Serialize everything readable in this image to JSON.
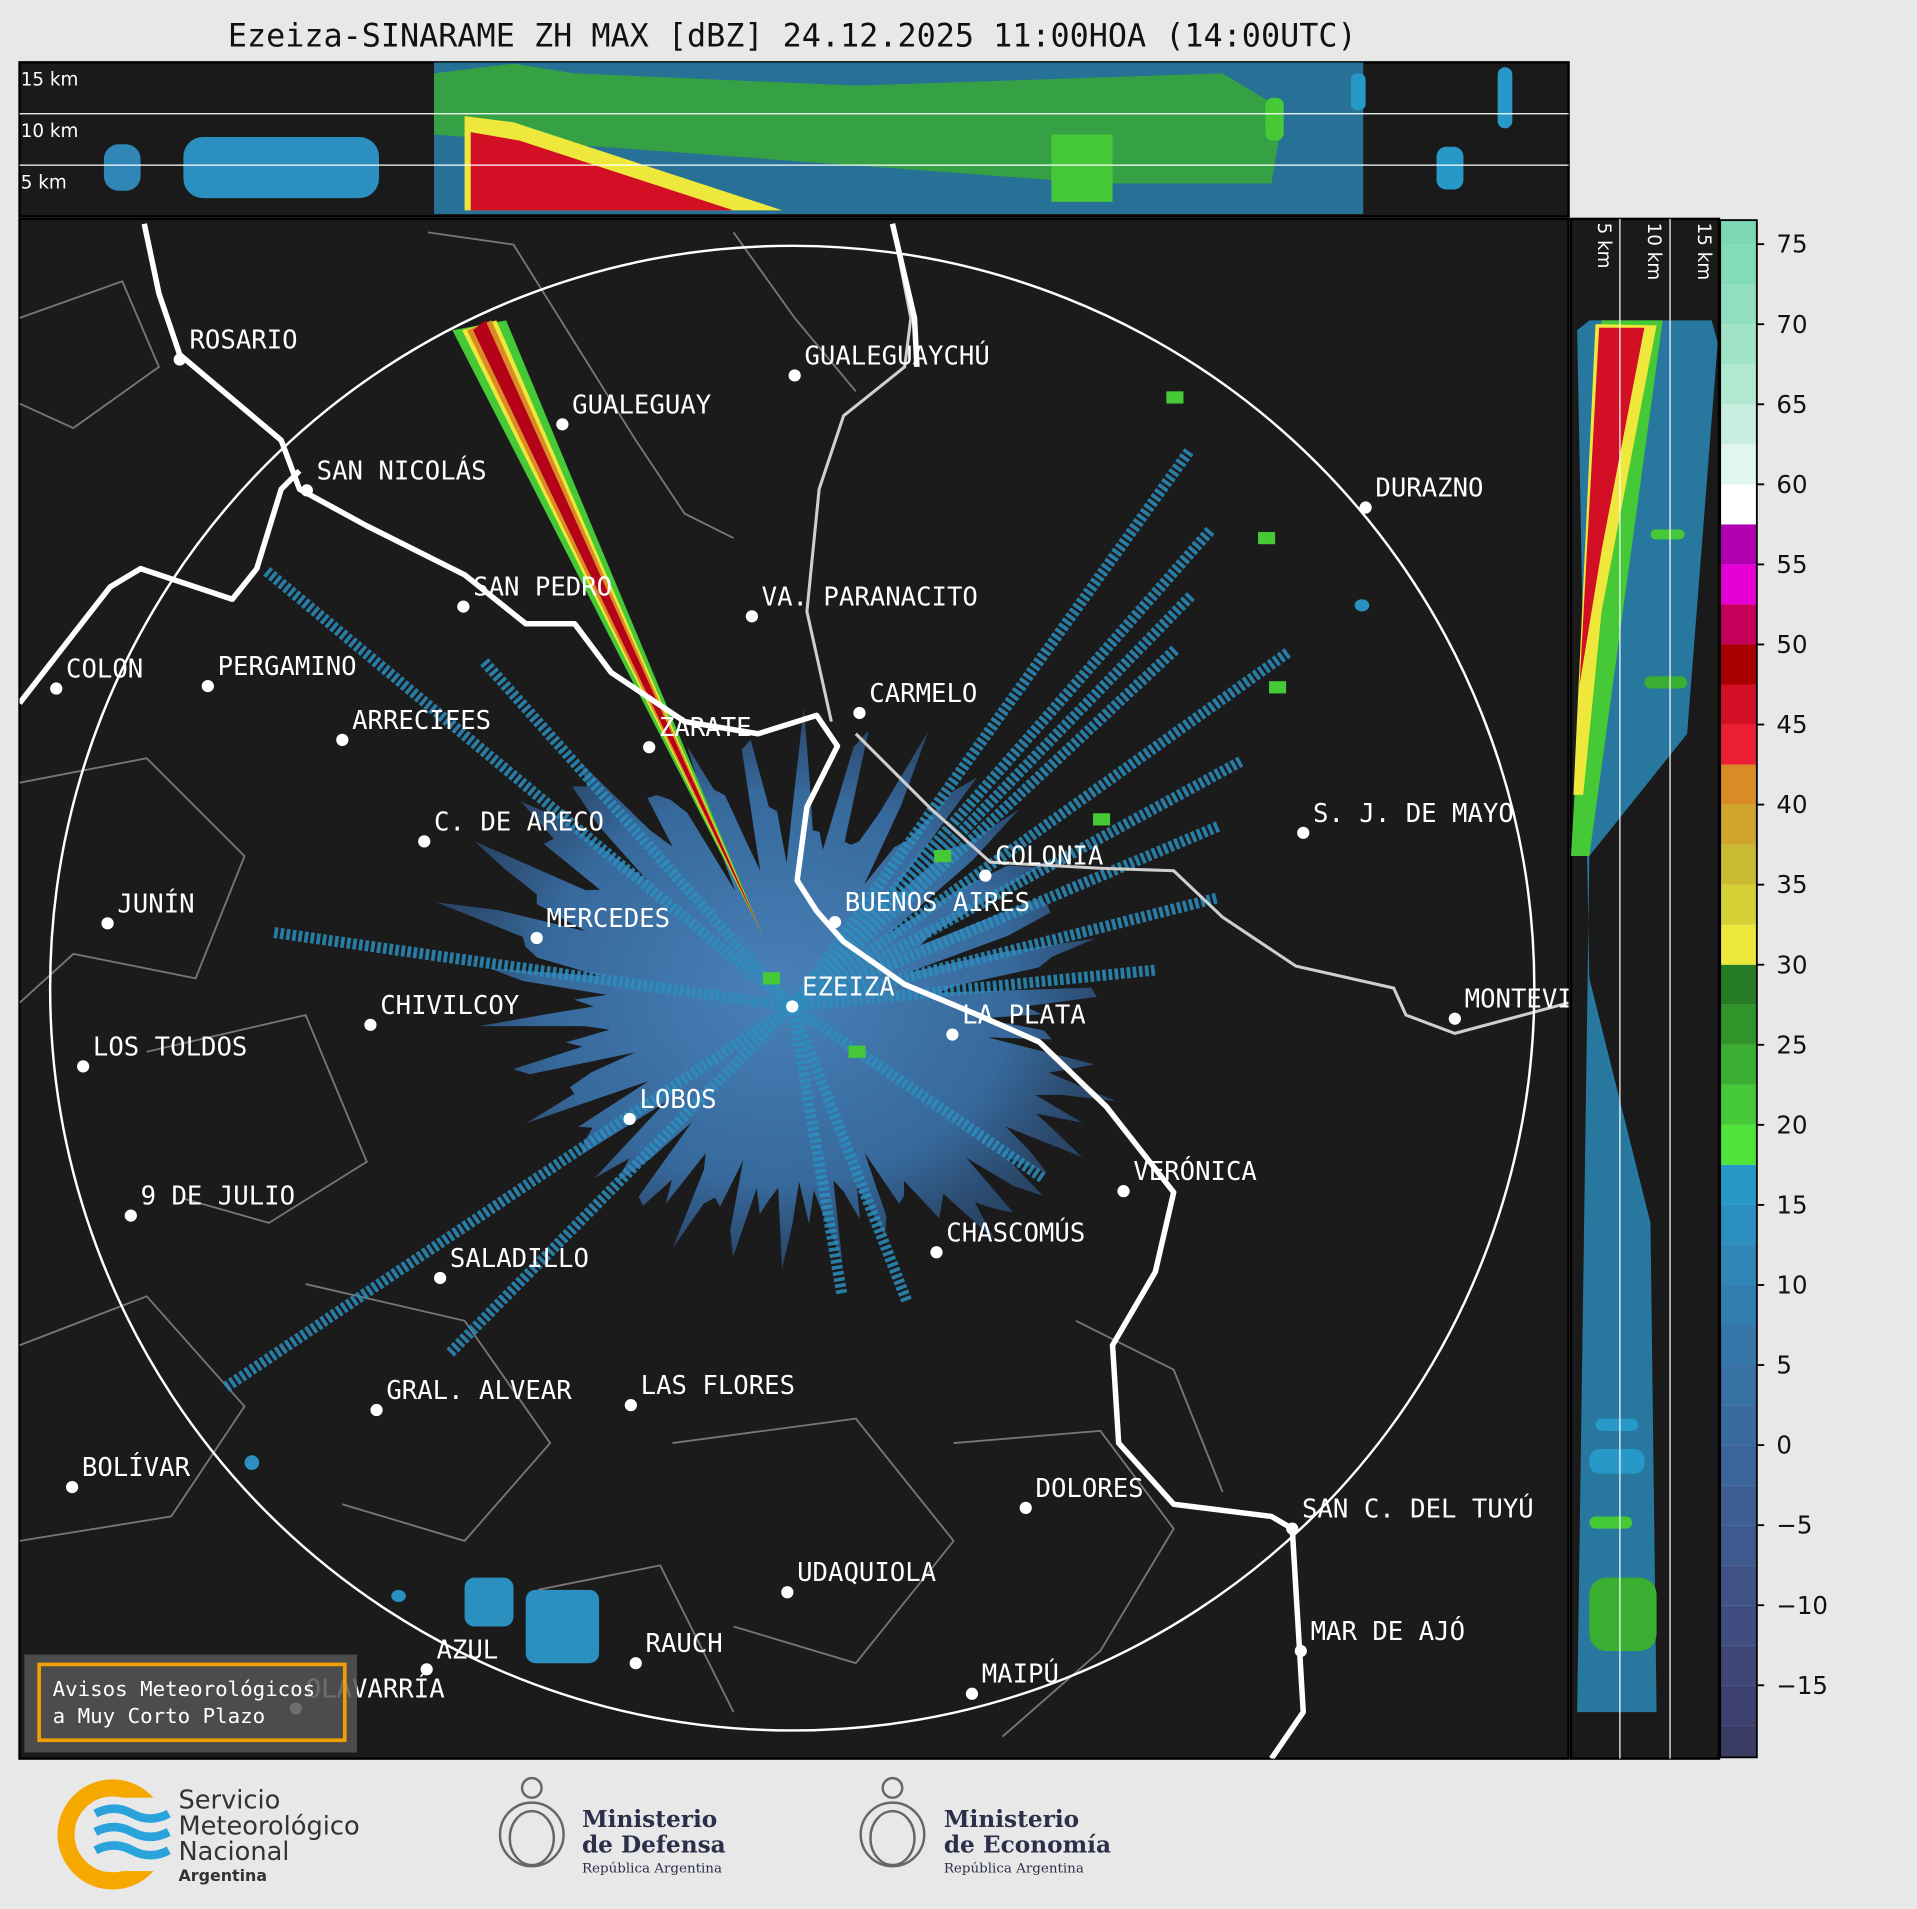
{
  "title": "Ezeiza-SINARAME ZH MAX [dBZ] 24.12.2025 11:00HOA (14:00UTC)",
  "top_section": {
    "labels": [
      "15 km",
      "10 km",
      "5 km"
    ]
  },
  "side_section": {
    "labels": [
      "5 km",
      "10 km",
      "15 km"
    ]
  },
  "cities": [
    "ROSARIO",
    "GUALEGUAYCHÚ",
    "GUALEGUAY",
    "SAN NICOLÁS",
    "DURAZNO",
    "SAN PEDRO",
    "VA. PARANACITO",
    "COLON",
    "PERGAMINO",
    "CARMELO",
    "ARRECIFES",
    "ZARATE",
    "S. J. DE MAYO",
    "C. DE ARECO",
    "COLONIA",
    "BUENOS AIRES",
    "JUNÍN",
    "MERCEDES",
    "EZEIZA",
    "CHIVILCOY",
    "MONTEVIDEO",
    "LA PLATA",
    "LOS TOLDOS",
    "LOBOS",
    "VERÓNICA",
    "9 DE JULIO",
    "CHASCOMÚS",
    "SALADILLO",
    "GRAL. ALVEAR",
    "LAS FLORES",
    "BOLÍVAR",
    "DOLORES",
    "SAN C. DEL TUYÚ",
    "UDAQUIOLA",
    "RAUCH",
    "MAR DE AJÓ",
    "AZUL",
    "OLAVARRÍA",
    "MAIPÚ"
  ],
  "colorbar": {
    "clim": [
      -19.5,
      76.5
    ],
    "bounds": [
      -20,
      -17.5,
      -15,
      -12.5,
      -10,
      -7.5,
      -5,
      -2.5,
      0,
      2.5,
      5,
      7.5,
      10,
      12.5,
      15,
      17.5,
      20,
      22.5,
      25,
      27.5,
      30,
      32.5,
      35,
      37.5,
      40,
      42.5,
      45,
      47.5,
      50,
      52.5,
      55,
      57.5,
      60,
      62.5,
      65,
      67.5,
      70,
      72.5,
      75,
      77.5
    ],
    "colors": [
      "#3a3c66",
      "#3c416f",
      "#3e4778",
      "#3f4d80",
      "#3f5387",
      "#3e598e",
      "#3d5f94",
      "#3b659a",
      "#3a6b9f",
      "#3871a4",
      "#3677aa",
      "#337eb0",
      "#2f86b7",
      "#2b8fbf",
      "#2699c9",
      "#4ee43a",
      "#45c936",
      "#3aae30",
      "#30942a",
      "#267c24",
      "#ede83b",
      "#d4d036",
      "#c9ba31",
      "#cfa52c",
      "#d98b25",
      "#eb1e35",
      "#d30f25",
      "#a80000",
      "#c4005a",
      "#e600d6",
      "#b000b0",
      "#ffffff",
      "#e0f6ee",
      "#c8eedf",
      "#b0e8d2",
      "#a0e4c8",
      "#90dfc0",
      "#84dbb8",
      "#7cd8b2"
    ],
    "ticks": [
      75,
      70,
      65,
      60,
      55,
      50,
      45,
      40,
      35,
      30,
      25,
      20,
      15,
      10,
      5,
      0,
      {
        "value": -5,
        "label": "−5"
      },
      {
        "value": -10,
        "label": "−10"
      },
      {
        "value": -15,
        "label": "−15"
      }
    ]
  },
  "notice": [
    "Avisos Meteorológicos",
    "a Muy Corto Plazo"
  ],
  "footer": {
    "smn": [
      "Servicio",
      "Meteorológico",
      "Nacional",
      "Argentina"
    ],
    "defensa": [
      "Ministerio",
      "de Defensa",
      "República Argentina"
    ],
    "economia": [
      "Ministerio",
      "de Economía",
      "República Argentina"
    ]
  }
}
